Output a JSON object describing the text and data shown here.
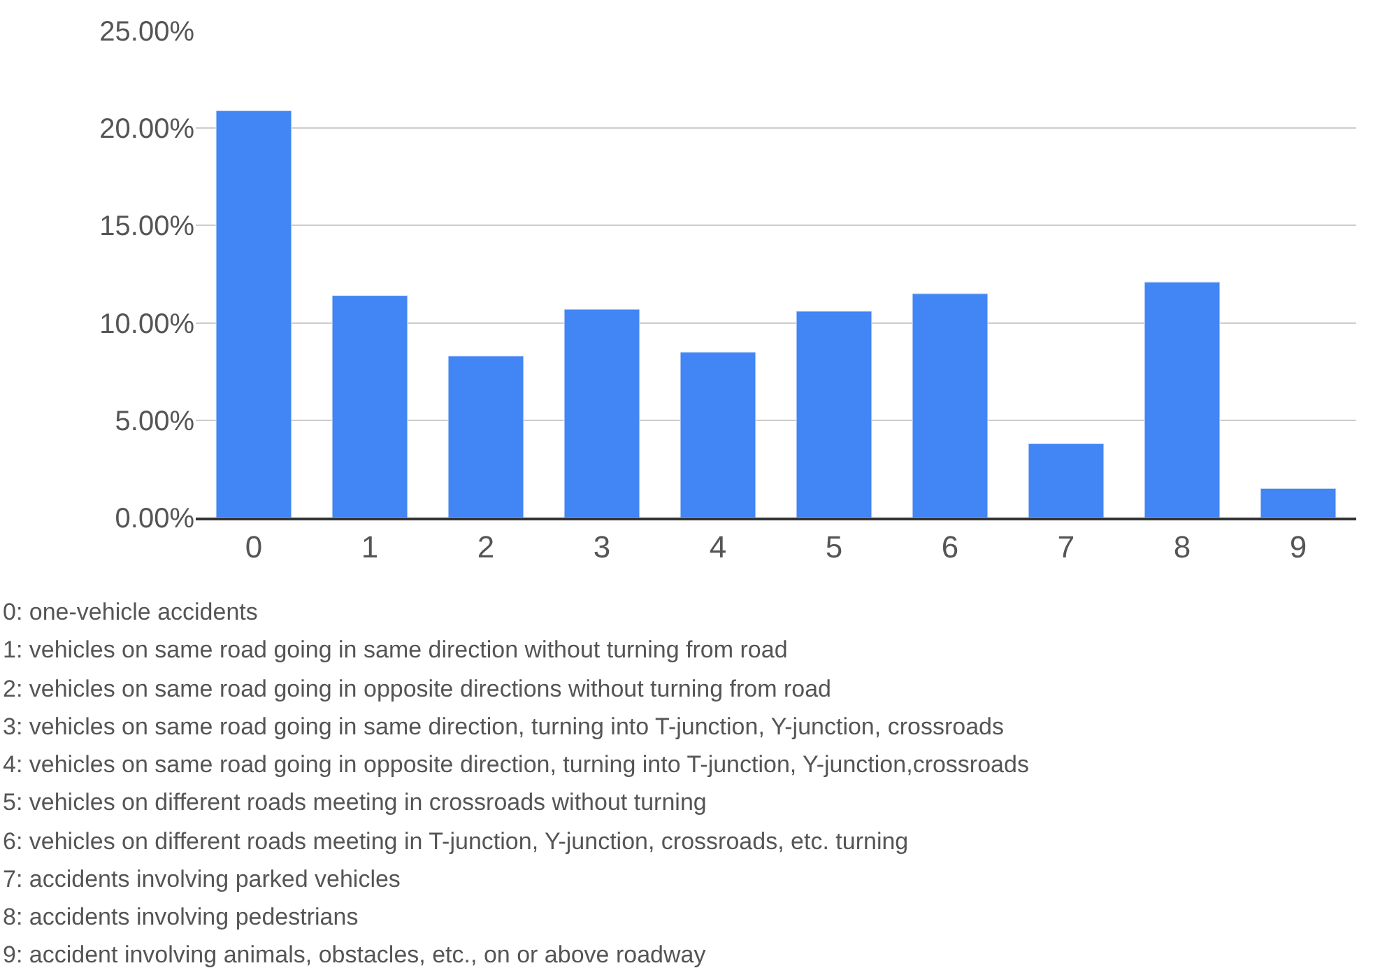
{
  "chart_data": {
    "type": "bar",
    "categories": [
      "0",
      "1",
      "2",
      "3",
      "4",
      "5",
      "6",
      "7",
      "8",
      "9"
    ],
    "values": [
      20.9,
      11.4,
      8.3,
      10.7,
      8.5,
      10.6,
      11.5,
      3.8,
      12.1,
      1.5
    ],
    "color": "#4285f4",
    "ylim": [
      0,
      25
    ],
    "yticks": [
      {
        "value": 0,
        "label": "0.00%"
      },
      {
        "value": 5,
        "label": "5.00%"
      },
      {
        "value": 10,
        "label": "10.00%"
      },
      {
        "value": 15,
        "label": "15.00%"
      },
      {
        "value": 20,
        "label": "20.00%"
      },
      {
        "value": 25,
        "label": "25.00%"
      }
    ],
    "grid": "y",
    "annotations": [
      "0: one-vehicle accidents",
      "1: vehicles on same road going in same direction without turning from road",
      "2: vehicles on same road going in opposite directions without turning from road",
      "3: vehicles on same road going in same direction, turning into T-junction, Y-junction, crossroads",
      "4: vehicles on same road going in opposite direction, turning into T-junction, Y-junction,crossroads",
      "5: vehicles on different roads meeting in crossroads without turning",
      "6: vehicles on different roads meeting in T-junction, Y-junction, crossroads, etc. turning",
      "7: accidents involving parked vehicles",
      "8: accidents involving pedestrians",
      "9: accident involving animals, obstacles, etc., on or above roadway"
    ]
  }
}
